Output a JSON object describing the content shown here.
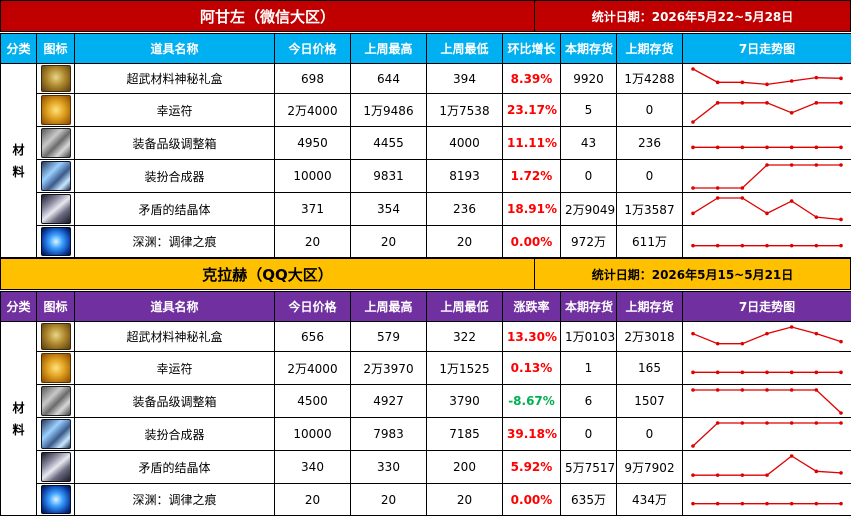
{
  "sections": [
    {
      "title": "阿甘左（微信大区）",
      "date": "统计日期：2026年5月22~5月28日",
      "colors": {
        "title_bg": "#c00000",
        "title_fg": "#ffffff",
        "right_bg": "#c00000",
        "right_fg": "#ffffff",
        "header_bg": "#00b0f0"
      },
      "headers": [
        "分类",
        "图标",
        "道具名称",
        "今日价格",
        "上周最高",
        "上周最低",
        "环比增长",
        "本期存货",
        "上期存货",
        "7日走势图"
      ],
      "category": "材料",
      "rows": [
        {
          "icon": "treasure-chest-icon",
          "name": "超武材料神秘礼盒",
          "price": "698",
          "high": "644",
          "low": "394",
          "change": "8.39%",
          "dir": "up",
          "stock_now": "9920",
          "stock_prev": "1万4288",
          "trend": [
            4,
            2,
            2,
            1.7,
            2.2,
            2.7,
            2.6
          ]
        },
        {
          "icon": "lucky-charm-icon",
          "name": "幸运符",
          "price": "2万4000",
          "high": "1万9486",
          "low": "1万7538",
          "change": "23.17%",
          "dir": "up",
          "stock_now": "5",
          "stock_prev": "0",
          "trend": [
            1,
            3.5,
            3.5,
            3.5,
            2.2,
            3.5,
            3.5
          ]
        },
        {
          "icon": "equipment-box-icon",
          "name": "装备品级调整箱",
          "price": "4950",
          "high": "4455",
          "low": "4000",
          "change": "11.11%",
          "dir": "up",
          "stock_now": "43",
          "stock_prev": "236",
          "trend": [
            2,
            2,
            2,
            2,
            2,
            2,
            2
          ]
        },
        {
          "icon": "synthesizer-cube-icon",
          "name": "装扮合成器",
          "price": "10000",
          "high": "9831",
          "low": "8193",
          "change": "1.72%",
          "dir": "up",
          "stock_now": "0",
          "stock_prev": "0",
          "trend": [
            1,
            1,
            1,
            4,
            4,
            4,
            4
          ]
        },
        {
          "icon": "crystal-icon",
          "name": "矛盾的结晶体",
          "price": "371",
          "high": "354",
          "low": "236",
          "change": "18.91%",
          "dir": "up",
          "stock_now": "2万9049",
          "stock_prev": "1万3587",
          "trend": [
            2,
            4,
            4,
            2,
            3.6,
            1.5,
            1.2
          ]
        },
        {
          "icon": "blue-orb-icon",
          "name": "深渊：调律之痕",
          "price": "20",
          "high": "20",
          "low": "20",
          "change": "0.00%",
          "dir": "up",
          "stock_now": "972万",
          "stock_prev": "611万",
          "trend": [
            2,
            2,
            2,
            2,
            2,
            2,
            2
          ]
        }
      ]
    },
    {
      "title": "克拉赫（QQ大区）",
      "date": "统计日期：2026年5月15~5月21日",
      "colors": {
        "title_bg": "#ffc000",
        "title_fg": "#000000",
        "right_bg": "#ffc000",
        "right_fg": "#000000",
        "header_bg": "#7030a0"
      },
      "headers": [
        "分类",
        "图标",
        "道具名称",
        "今日价格",
        "上周最高",
        "上周最低",
        "涨跌率",
        "本期存货",
        "上期存货",
        "7日走势图"
      ],
      "category": "材料",
      "rows": [
        {
          "icon": "treasure-chest-icon",
          "name": "超武材料神秘礼盒",
          "price": "656",
          "high": "579",
          "low": "322",
          "change": "13.30%",
          "dir": "up",
          "stock_now": "1万0103",
          "stock_prev": "2万3018",
          "trend": [
            3,
            1.5,
            1.5,
            3,
            4,
            3,
            1.8
          ]
        },
        {
          "icon": "lucky-charm-icon",
          "name": "幸运符",
          "price": "2万4000",
          "high": "2万3970",
          "low": "1万1525",
          "change": "0.13%",
          "dir": "up",
          "stock_now": "1",
          "stock_prev": "165",
          "trend": [
            2,
            2,
            2,
            2,
            2,
            2,
            2
          ]
        },
        {
          "icon": "equipment-box-icon",
          "name": "装备品级调整箱",
          "price": "4500",
          "high": "4927",
          "low": "3790",
          "change": "-8.67%",
          "dir": "down",
          "stock_now": "6",
          "stock_prev": "1507",
          "trend": [
            4,
            4,
            4,
            4,
            4,
            4,
            1
          ]
        },
        {
          "icon": "synthesizer-cube-icon",
          "name": "装扮合成器",
          "price": "10000",
          "high": "7983",
          "low": "7185",
          "change": "39.18%",
          "dir": "up",
          "stock_now": "0",
          "stock_prev": "0",
          "trend": [
            1,
            4,
            4,
            4,
            4,
            4,
            4
          ]
        },
        {
          "icon": "crystal-icon",
          "name": "矛盾的结晶体",
          "price": "340",
          "high": "330",
          "low": "200",
          "change": "5.92%",
          "dir": "up",
          "stock_now": "5万7517",
          "stock_prev": "9万7902",
          "trend": [
            1.5,
            1.5,
            1.5,
            1.5,
            4,
            2,
            1.8
          ]
        },
        {
          "icon": "blue-orb-icon",
          "name": "深渊：调律之痕",
          "price": "20",
          "high": "20",
          "low": "20",
          "change": "0.00%",
          "dir": "up",
          "stock_now": "635万",
          "stock_prev": "434万",
          "trend": [
            2,
            2,
            2,
            2,
            2,
            2,
            2
          ]
        }
      ]
    }
  ]
}
